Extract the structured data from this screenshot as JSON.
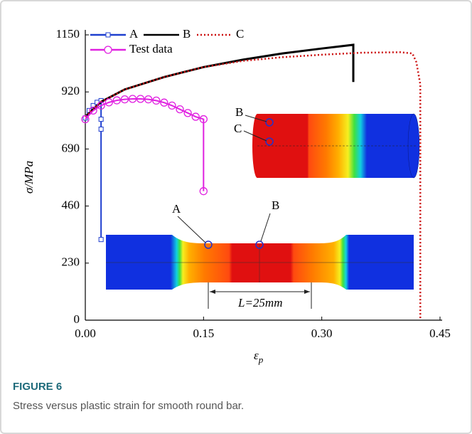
{
  "chart_data": {
    "type": "line",
    "xlabel": "ε",
    "xlabel_sub": "p",
    "ylabel": "σ/MPa",
    "xlim": [
      0,
      0.45
    ],
    "ylim": [
      0,
      1150
    ],
    "xticks": [
      {
        "value": 0,
        "label": "0.00"
      },
      {
        "value": 0.15,
        "label": "0.15"
      },
      {
        "value": 0.3,
        "label": "0.30"
      },
      {
        "value": 0.45,
        "label": "0.45"
      }
    ],
    "yticks": [
      0,
      230,
      460,
      690,
      920,
      1150
    ],
    "series": [
      {
        "name": "A",
        "color": "#1f3fcf",
        "marker": "square",
        "x": [
          0,
          0.005,
          0.01,
          0.015,
          0.02,
          0.02,
          0.02,
          0.02
        ],
        "values": [
          815,
          845,
          865,
          878,
          885,
          810,
          770,
          325
        ]
      },
      {
        "name": "B",
        "color": "#000000",
        "marker": "none",
        "x": [
          0,
          0.02,
          0.05,
          0.1,
          0.15,
          0.2,
          0.25,
          0.3,
          0.34,
          0.34
        ],
        "values": [
          820,
          880,
          930,
          980,
          1020,
          1050,
          1075,
          1095,
          1110,
          960
        ]
      },
      {
        "name": "C",
        "color": "#cc1111",
        "marker": "none",
        "dash": true,
        "x": [
          0,
          0.02,
          0.05,
          0.1,
          0.15,
          0.2,
          0.25,
          0.3,
          0.35,
          0.4,
          0.415,
          0.42,
          0.425,
          0.425
        ],
        "values": [
          820,
          880,
          930,
          980,
          1020,
          1045,
          1060,
          1070,
          1078,
          1080,
          1075,
          1040,
          950,
          0
        ]
      },
      {
        "name": "Test data",
        "color": "#e020e0",
        "marker": "circle",
        "x": [
          0,
          0.01,
          0.02,
          0.03,
          0.04,
          0.05,
          0.06,
          0.07,
          0.08,
          0.09,
          0.1,
          0.11,
          0.12,
          0.13,
          0.14,
          0.15,
          0.15
        ],
        "values": [
          810,
          845,
          865,
          878,
          886,
          890,
          892,
          892,
          890,
          885,
          877,
          865,
          850,
          835,
          820,
          810,
          520
        ]
      }
    ],
    "annotations": [
      "A",
      "B",
      "B",
      "C",
      "L=25mm"
    ]
  },
  "caption": {
    "label": "FIGURE 6",
    "text": "Stress versus plastic strain for smooth round bar."
  }
}
